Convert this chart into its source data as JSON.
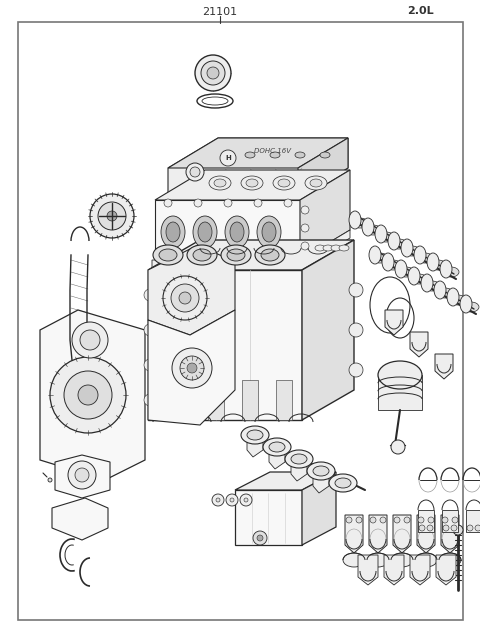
{
  "title_part_number": "21101",
  "title_engine_size": "2.0L",
  "bg_color": "#ffffff",
  "line_color": "#2a2a2a",
  "fill_light": "#f8f8f8",
  "fill_mid": "#eeeeee",
  "fill_dark": "#e0e0e0",
  "border_color": "#777777",
  "text_color": "#444444",
  "fig_width": 4.8,
  "fig_height": 6.32,
  "dpi": 100
}
